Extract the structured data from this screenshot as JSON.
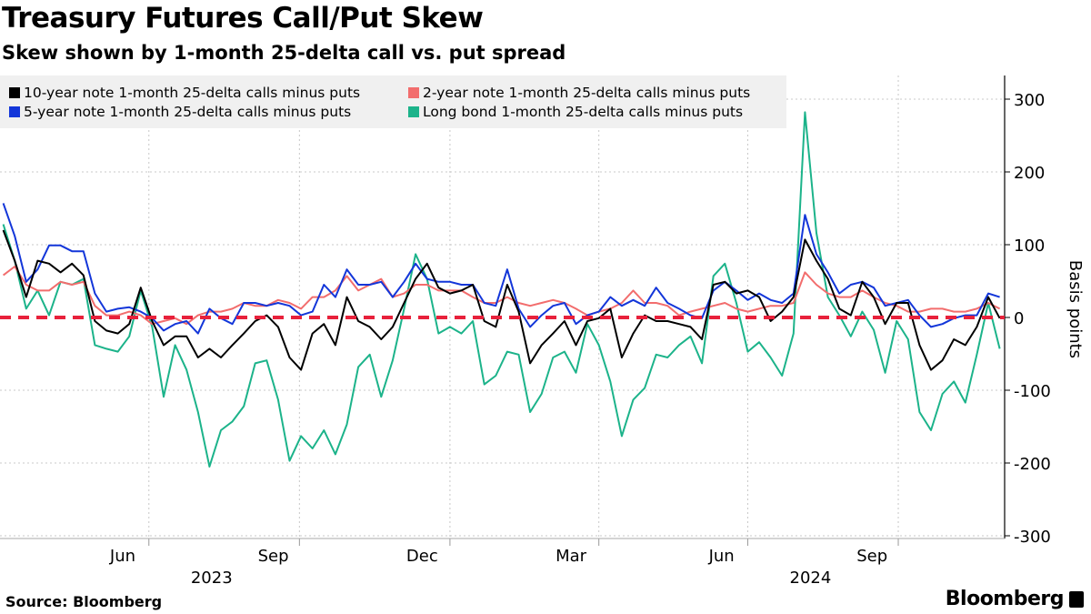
{
  "header": {
    "title": "Treasury Futures Call/Put Skew",
    "subtitle": "Skew shown by 1-month 25-delta call vs. put spread"
  },
  "footer": {
    "source": "Source: Bloomberg",
    "logo": "Bloomberg"
  },
  "chart_data": {
    "type": "line",
    "title": "Treasury Futures Call/Put Skew",
    "subtitle": "Skew shown by 1-month 25-delta call vs. put spread",
    "ylabel": "Basis points",
    "ylim": [
      -300,
      330
    ],
    "yticks": [
      300,
      200,
      100,
      0,
      -100,
      -200,
      -300
    ],
    "xlim": [
      "2023-04-01",
      "2024-12-05"
    ],
    "xticks": [
      {
        "label": "Jun",
        "date": "2023-06-15"
      },
      {
        "label": "Sep",
        "date": "2023-09-15"
      },
      {
        "label": "Dec",
        "date": "2023-12-15"
      },
      {
        "label": "Mar",
        "date": "2024-03-15"
      },
      {
        "label": "Jun",
        "date": "2024-06-15"
      },
      {
        "label": "Sep",
        "date": "2024-09-15"
      }
    ],
    "xgrid": [
      "2023-07-01",
      "2023-10-01",
      "2024-01-01",
      "2024-04-01",
      "2024-07-01",
      "2024-10-01"
    ],
    "year_labels": [
      {
        "label": "2023",
        "date": "2023-08-15"
      },
      {
        "label": "2024",
        "date": "2024-08-15"
      }
    ],
    "grid": true,
    "legend_position": "top-left",
    "reference_line": {
      "value": 0,
      "color": "#e8213b",
      "style": "dashed"
    },
    "x": [
      "2023-04-03",
      "2023-04-10",
      "2023-04-17",
      "2023-04-24",
      "2023-05-01",
      "2023-05-08",
      "2023-05-15",
      "2023-05-22",
      "2023-05-29",
      "2023-06-05",
      "2023-06-12",
      "2023-06-19",
      "2023-06-26",
      "2023-07-03",
      "2023-07-10",
      "2023-07-17",
      "2023-07-24",
      "2023-07-31",
      "2023-08-07",
      "2023-08-14",
      "2023-08-21",
      "2023-08-28",
      "2023-09-04",
      "2023-09-11",
      "2023-09-18",
      "2023-09-25",
      "2023-10-02",
      "2023-10-09",
      "2023-10-16",
      "2023-10-23",
      "2023-10-30",
      "2023-11-06",
      "2023-11-13",
      "2023-11-20",
      "2023-11-27",
      "2023-12-04",
      "2023-12-11",
      "2023-12-18",
      "2023-12-25",
      "2024-01-01",
      "2024-01-08",
      "2024-01-15",
      "2024-01-22",
      "2024-01-29",
      "2024-02-05",
      "2024-02-12",
      "2024-02-19",
      "2024-02-26",
      "2024-03-04",
      "2024-03-11",
      "2024-03-18",
      "2024-03-25",
      "2024-04-01",
      "2024-04-08",
      "2024-04-15",
      "2024-04-22",
      "2024-04-29",
      "2024-05-06",
      "2024-05-13",
      "2024-05-20",
      "2024-05-27",
      "2024-06-03",
      "2024-06-10",
      "2024-06-17",
      "2024-06-24",
      "2024-07-01",
      "2024-07-08",
      "2024-07-15",
      "2024-07-22",
      "2024-07-29",
      "2024-08-05",
      "2024-08-12",
      "2024-08-19",
      "2024-08-26",
      "2024-09-02",
      "2024-09-09",
      "2024-09-16",
      "2024-09-23",
      "2024-09-30",
      "2024-10-07",
      "2024-10-14",
      "2024-10-21",
      "2024-10-28",
      "2024-11-04",
      "2024-11-11",
      "2024-11-18",
      "2024-11-25",
      "2024-12-02"
    ],
    "series": [
      {
        "name": "10-year note 1-month 25-delta calls minus puts",
        "color": "#000000",
        "values": [
          120,
          78,
          28,
          78,
          74,
          62,
          74,
          58,
          -5,
          -18,
          -22,
          -9,
          41,
          -5,
          -38,
          -26,
          -26,
          -55,
          -43,
          -55,
          -38,
          -22,
          -5,
          3,
          -13,
          -55,
          -72,
          -22,
          -9,
          -38,
          28,
          -5,
          -13,
          -30,
          -13,
          20,
          53,
          74,
          41,
          33,
          37,
          45,
          -5,
          -13,
          45,
          8,
          -63,
          -38,
          -22,
          -5,
          -38,
          -5,
          -1,
          12,
          -55,
          -22,
          3,
          -5,
          -5,
          -9,
          -13,
          -30,
          45,
          49,
          33,
          37,
          28,
          -5,
          8,
          28,
          107,
          78,
          53,
          12,
          3,
          49,
          28,
          -9,
          20,
          20,
          -38,
          -72,
          -59,
          -30,
          -38,
          -13,
          28,
          -1
        ]
      },
      {
        "name": "2-year note 1-month 25-delta calls minus puts",
        "color": "#f26d6d",
        "values": [
          58,
          70,
          45,
          37,
          37,
          49,
          45,
          49,
          16,
          3,
          3,
          8,
          3,
          -9,
          -5,
          -1,
          -9,
          3,
          8,
          8,
          12,
          20,
          16,
          16,
          24,
          20,
          12,
          28,
          28,
          37,
          57,
          37,
          45,
          53,
          28,
          33,
          45,
          45,
          37,
          37,
          37,
          28,
          20,
          20,
          28,
          20,
          16,
          20,
          24,
          20,
          12,
          3,
          8,
          12,
          20,
          37,
          20,
          20,
          16,
          3,
          8,
          12,
          16,
          20,
          12,
          8,
          12,
          16,
          16,
          20,
          62,
          45,
          33,
          28,
          28,
          37,
          28,
          20,
          16,
          8,
          8,
          12,
          12,
          8,
          8,
          12,
          20,
          12
        ]
      },
      {
        "name": "5-year note 1-month 25-delta calls minus puts",
        "color": "#1336d9",
        "values": [
          157,
          112,
          49,
          66,
          99,
          99,
          91,
          91,
          33,
          8,
          12,
          14,
          8,
          -1,
          -18,
          -9,
          -5,
          -22,
          12,
          -1,
          -9,
          20,
          20,
          16,
          20,
          16,
          3,
          8,
          45,
          28,
          66,
          45,
          45,
          49,
          28,
          49,
          74,
          53,
          49,
          49,
          45,
          45,
          20,
          16,
          66,
          12,
          -13,
          3,
          16,
          20,
          -9,
          3,
          8,
          28,
          16,
          24,
          16,
          41,
          20,
          12,
          3,
          -1,
          37,
          49,
          37,
          24,
          33,
          24,
          20,
          33,
          141,
          87,
          62,
          33,
          45,
          49,
          41,
          16,
          20,
          24,
          3,
          -13,
          -9,
          -1,
          3,
          3,
          33,
          28
        ]
      },
      {
        "name": "Long bond 1-month 25-delta calls minus puts",
        "color": "#1cb38a",
        "values": [
          128,
          78,
          12,
          37,
          3,
          49,
          45,
          53,
          -38,
          -43,
          -47,
          -26,
          37,
          -13,
          -109,
          -38,
          -72,
          -130,
          -205,
          -155,
          -143,
          -122,
          -63,
          -59,
          -113,
          -197,
          -163,
          -180,
          -155,
          -188,
          -147,
          -68,
          -51,
          -109,
          -59,
          12,
          87,
          53,
          -22,
          -13,
          -22,
          -5,
          -92,
          -80,
          -47,
          -51,
          -130,
          -105,
          -55,
          -47,
          -76,
          -9,
          -38,
          -88,
          -163,
          -113,
          -97,
          -51,
          -55,
          -38,
          -26,
          -63,
          57,
          74,
          20,
          -47,
          -34,
          -55,
          -80,
          -22,
          282,
          116,
          28,
          3,
          -26,
          8,
          -17,
          -76,
          -5,
          -30,
          -130,
          -155,
          -105,
          -88,
          -117,
          -51,
          20,
          -43
        ]
      }
    ]
  }
}
